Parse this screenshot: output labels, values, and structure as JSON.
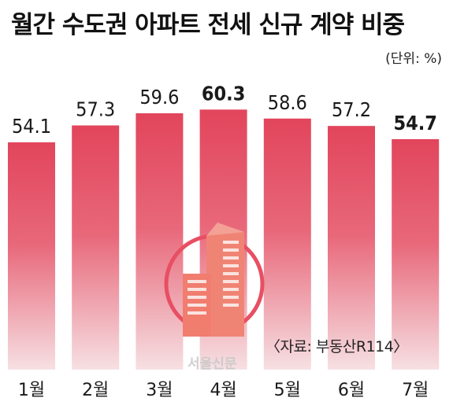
{
  "title": "월간 수도권 아파트 전세 신규 계약 비중",
  "unit": "(단위: %)",
  "source": "〈자료: 부동산R114〉",
  "watermark": "서울신문",
  "colors": {
    "bar_top": "#e2455c",
    "bar_bottom": "#f6e0e3",
    "icon_ring": "#e84f63",
    "icon_building": "#f07f72"
  },
  "chart_data": {
    "type": "bar",
    "categories": [
      "1월",
      "2월",
      "3월",
      "4월",
      "5월",
      "6월",
      "7월"
    ],
    "values": [
      54.1,
      57.3,
      59.6,
      60.3,
      58.6,
      57.2,
      54.7
    ],
    "value_labels": [
      "54.1",
      "57.3",
      "59.6",
      "60.3",
      "58.6",
      "57.2",
      "54.7"
    ],
    "highlighted": [
      3,
      6
    ],
    "title": "월간 수도권 아파트 전세 신규 계약 비중",
    "unit": "(단위: %)",
    "grid": false,
    "legend": "none"
  }
}
